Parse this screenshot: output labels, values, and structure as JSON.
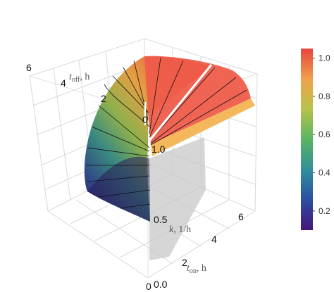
{
  "chart_data": {
    "type": "surface3d",
    "title": "",
    "axes": {
      "t_on": {
        "label": "t",
        "label_sub": "on",
        "label_unit": ", h",
        "ticks": [
          "0",
          "2",
          "4",
          "6"
        ],
        "range": [
          0,
          7
        ]
      },
      "t_off": {
        "label": "t",
        "label_sub": "off",
        "label_unit": ", h",
        "ticks": [
          "2",
          "4",
          "6"
        ],
        "range": [
          0,
          7
        ]
      },
      "k": {
        "label": "k",
        "label_sub": "",
        "label_unit": ", 1/h",
        "ticks": [
          "0.0",
          "0.5",
          "1.0"
        ],
        "range": [
          0,
          1.2
        ]
      }
    },
    "origin_tick": "0",
    "surface": {
      "colormap": "spectral",
      "color_range": [
        0.1,
        1.05
      ],
      "mesh_lines": "black",
      "highlight_contour": {
        "color": "#ffffff"
      },
      "shadow_projection": "gray"
    },
    "colorbar": {
      "ticks": [
        "0.2",
        "0.4",
        "0.6",
        "0.8",
        "1.0"
      ],
      "tick_values": [
        0.2,
        0.4,
        0.6,
        0.8,
        1.0
      ],
      "range": [
        0.1,
        1.05
      ],
      "colors": [
        "#45157a",
        "#2c4ea3",
        "#2f8f9c",
        "#58b563",
        "#b9c24a",
        "#f0a24a",
        "#e9433e"
      ]
    },
    "grid": true
  }
}
